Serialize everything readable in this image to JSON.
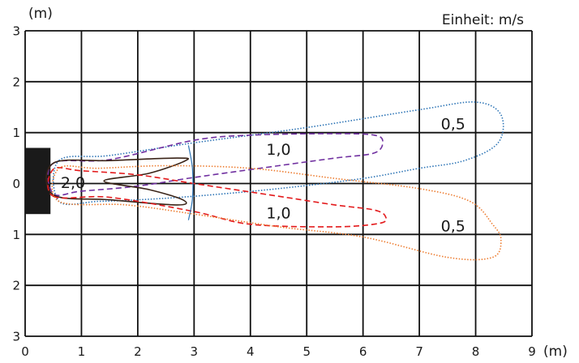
{
  "chart_data": {
    "type": "line",
    "unit_label": "Einheit: m/s",
    "x_axis_label": "(m)",
    "y_axis_label": "(m)",
    "xlim": [
      0,
      9
    ],
    "ylim": [
      -3,
      3
    ],
    "x_ticks": [
      {
        "value": 0,
        "label": "0"
      },
      {
        "value": 1,
        "label": "1"
      },
      {
        "value": 2,
        "label": "2"
      },
      {
        "value": 3,
        "label": "3"
      },
      {
        "value": 4,
        "label": "4"
      },
      {
        "value": 5,
        "label": "5"
      },
      {
        "value": 6,
        "label": "6"
      },
      {
        "value": 7,
        "label": "7"
      },
      {
        "value": 8,
        "label": "8"
      },
      {
        "value": 9,
        "label": "9"
      }
    ],
    "y_ticks": [
      {
        "value": 3,
        "label": "3"
      },
      {
        "value": 2,
        "label": "2"
      },
      {
        "value": 1,
        "label": "1"
      },
      {
        "value": 0,
        "label": "0"
      },
      {
        "value": -1,
        "label": "1"
      },
      {
        "value": -2,
        "label": "2"
      },
      {
        "value": -3,
        "label": "3"
      }
    ],
    "grid": true,
    "source_block": {
      "x": [
        0,
        0.45
      ],
      "y": [
        -0.6,
        0.7
      ],
      "color": "#1a1a1a"
    },
    "contours": [
      {
        "label": "0,5",
        "label_pos": [
          7.6,
          1.15
        ],
        "color": "#2e75b6",
        "dash": "dotted",
        "points": [
          [
            0.6,
            0.45
          ],
          [
            1.5,
            0.55
          ],
          [
            3,
            0.8
          ],
          [
            5,
            1.1
          ],
          [
            7,
            1.45
          ],
          [
            8,
            1.6
          ],
          [
            8.45,
            1.35
          ],
          [
            8.4,
            0.8
          ],
          [
            7.8,
            0.45
          ],
          [
            7,
            0.3
          ],
          [
            6,
            0.1
          ],
          [
            4.5,
            -0.1
          ],
          [
            3,
            -0.25
          ],
          [
            2,
            -0.32
          ],
          [
            1.3,
            -0.35
          ],
          [
            0.6,
            -0.35
          ]
        ]
      },
      {
        "label": "1,0",
        "label_pos": [
          4.5,
          0.65
        ],
        "color": "#7030a0",
        "dash": "dashed",
        "points": [
          [
            0.5,
            0.4
          ],
          [
            1.5,
            0.47
          ],
          [
            3,
            0.85
          ],
          [
            4,
            0.95
          ],
          [
            5.5,
            0.98
          ],
          [
            6.2,
            0.95
          ],
          [
            6.35,
            0.82
          ],
          [
            6.2,
            0.6
          ],
          [
            5.5,
            0.5
          ],
          [
            4.5,
            0.35
          ],
          [
            3,
            0.12
          ],
          [
            2,
            -0.05
          ],
          [
            1,
            -0.15
          ],
          [
            0.5,
            -0.2
          ]
        ]
      },
      {
        "label": "2,0",
        "label_pos": [
          0.85,
          0.0
        ],
        "color": "#3a2418",
        "dash": "solid",
        "points": [
          [
            0.5,
            0.4
          ],
          [
            1.5,
            0.45
          ],
          [
            2.7,
            0.5
          ],
          [
            2.85,
            0.45
          ],
          [
            2.2,
            0.2
          ],
          [
            1.4,
            0.05
          ],
          [
            2.2,
            -0.12
          ],
          [
            2.8,
            -0.32
          ],
          [
            2.7,
            -0.42
          ],
          [
            1.5,
            -0.32
          ],
          [
            0.5,
            -0.22
          ]
        ]
      },
      {
        "label": "1,0",
        "label_pos": [
          4.5,
          -0.6
        ],
        "color": "#e31a1c",
        "dash": "dashed",
        "points": [
          [
            0.5,
            -0.25
          ],
          [
            1.5,
            -0.27
          ],
          [
            3,
            -0.55
          ],
          [
            4,
            -0.8
          ],
          [
            5.5,
            -0.85
          ],
          [
            6.3,
            -0.78
          ],
          [
            6.4,
            -0.65
          ],
          [
            6.2,
            -0.52
          ],
          [
            5.5,
            -0.42
          ],
          [
            4.5,
            -0.25
          ],
          [
            3,
            0.0
          ],
          [
            2,
            0.17
          ],
          [
            1,
            0.25
          ],
          [
            0.5,
            0.28
          ]
        ]
      },
      {
        "label": "0,5",
        "label_pos": [
          7.6,
          -0.85
        ],
        "color": "#ed7d31",
        "dash": "dotted",
        "points": [
          [
            0.6,
            0.3
          ],
          [
            1.3,
            0.3
          ],
          [
            2.5,
            0.35
          ],
          [
            4,
            0.3
          ],
          [
            5.5,
            0.1
          ],
          [
            7,
            -0.1
          ],
          [
            7.9,
            -0.35
          ],
          [
            8.3,
            -0.8
          ],
          [
            8.45,
            -1.1
          ],
          [
            8.3,
            -1.45
          ],
          [
            7.5,
            -1.45
          ],
          [
            6,
            -1.05
          ],
          [
            4.5,
            -0.85
          ],
          [
            3,
            -0.6
          ],
          [
            1.8,
            -0.42
          ],
          [
            0.6,
            -0.35
          ]
        ]
      }
    ],
    "annotation_arcs": [
      {
        "color": "#2e75b6",
        "points": [
          [
            2.9,
            0.75
          ],
          [
            2.97,
            0.3
          ],
          [
            2.97,
            -0.3
          ],
          [
            2.9,
            -0.72
          ]
        ]
      }
    ]
  }
}
